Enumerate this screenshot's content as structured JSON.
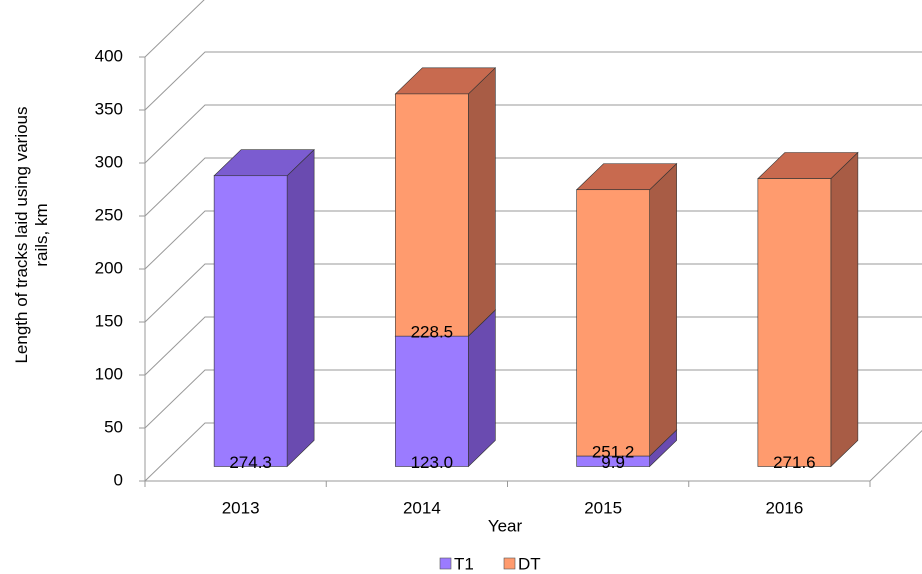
{
  "chart_data": {
    "type": "bar3d_stacked",
    "categories": [
      "2013",
      "2014",
      "2015",
      "2016"
    ],
    "series": [
      {
        "name": "T1",
        "color": "#9b7bff",
        "side": "#6a4bb0",
        "top": "#7b5cd0",
        "values": [
          274.3,
          123.0,
          9.9,
          null
        ],
        "value_labels": [
          "274.3",
          "123.0",
          "9.9",
          null
        ]
      },
      {
        "name": "DT",
        "color": "#ff9b6e",
        "side": "#a85c45",
        "top": "#c86a4f",
        "values": [
          null,
          228.5,
          251.2,
          271.6
        ],
        "value_labels": [
          null,
          "228.5",
          "251.2",
          "271.6"
        ]
      }
    ],
    "ylim": [
      0,
      400
    ],
    "yticks": [
      0,
      50,
      100,
      150,
      200,
      250,
      300,
      350,
      400
    ],
    "x_label": "Year",
    "y_label": "Length of tracks laid using various rails, km",
    "grid": true,
    "legend": "bottom"
  }
}
